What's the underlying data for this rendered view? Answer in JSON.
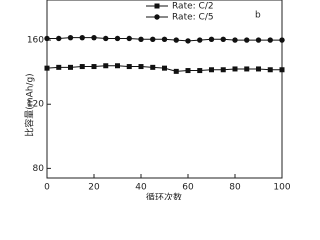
{
  "chart_data": {
    "type": "line",
    "annotation": "b",
    "x_label": "循环次数",
    "y_label": "比容量(mAh/g)",
    "x": [
      0,
      5,
      10,
      15,
      20,
      25,
      30,
      35,
      40,
      45,
      50,
      55,
      60,
      65,
      70,
      75,
      80,
      85,
      90,
      95,
      100
    ],
    "series": [
      {
        "name": "Rate: C/2",
        "color": "#111111",
        "marker": "square",
        "values": [
          142.5,
          143,
          143,
          143.5,
          143.5,
          144,
          144,
          143.5,
          143.5,
          143,
          142.5,
          140.5,
          141,
          141,
          141.5,
          141.5,
          142,
          142,
          142,
          141.5,
          141.5
        ]
      },
      {
        "name": "Rate: C/5",
        "color": "#111111",
        "marker": "circle",
        "values": [
          161,
          161,
          161.5,
          161.5,
          161.5,
          161,
          161,
          161,
          160.5,
          160.5,
          160.5,
          160,
          159.5,
          160,
          160.5,
          160.5,
          160,
          160,
          160,
          160,
          160
        ]
      }
    ],
    "xlim": [
      0,
      100
    ],
    "xticks": [
      0,
      20,
      40,
      60,
      80,
      100
    ],
    "ylim": [
      74,
      185
    ],
    "yticks": [
      80,
      120,
      160
    ]
  }
}
